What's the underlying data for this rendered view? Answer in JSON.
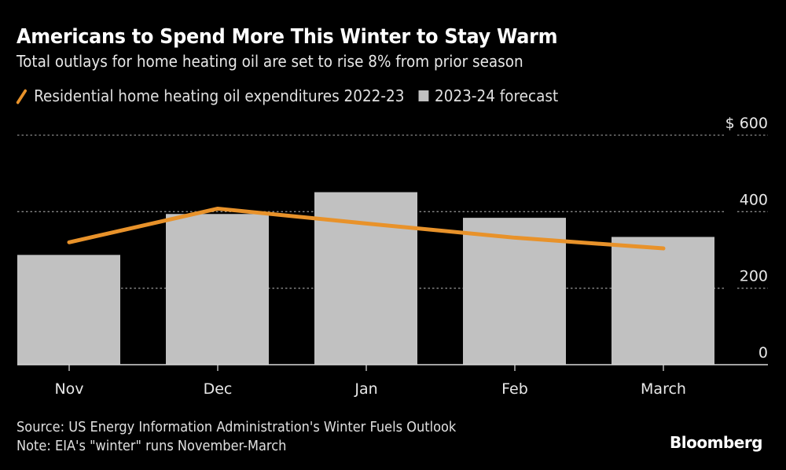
{
  "header": {
    "title": "Americans to Spend More This Winter to Stay Warm",
    "subtitle": "Total outlays for home heating oil are set to rise 8% from prior season"
  },
  "legend": {
    "line_label": "Residential home heating oil expenditures 2022-23",
    "bar_label": "2023-24 forecast"
  },
  "footer": {
    "source": "Source: US Energy Information Administration's Winter Fuels Outlook",
    "note": "Note: EIA's \"winter\" runs November-March",
    "brand": "Bloomberg"
  },
  "colors": {
    "background": "#000000",
    "bar": "#c1c1c1",
    "line": "#e8922a",
    "grid": "#8a8a8a",
    "text": "#ffffff"
  },
  "chart_data": {
    "type": "bar",
    "title": "Americans to Spend More This Winter to Stay Warm",
    "subtitle": "Total outlays for home heating oil are set to rise 8% from prior season",
    "categories": [
      "Nov",
      "Dec",
      "Jan",
      "Feb",
      "March"
    ],
    "series": [
      {
        "name": "2023-24 forecast",
        "type": "bar",
        "values": [
          287,
          394,
          451,
          384,
          334
        ]
      },
      {
        "name": "Residential home heating oil expenditures 2022-23",
        "type": "line",
        "values": [
          320,
          408,
          369,
          332,
          304
        ]
      }
    ],
    "xlabel": "",
    "ylabel": "",
    "ylim": [
      0,
      600
    ],
    "yticks": [
      0,
      200,
      400,
      600
    ],
    "ytick_labels": [
      "0",
      "200",
      "400",
      "$ 600"
    ],
    "y_axis_position": "right",
    "grid": true,
    "legend_position": "top-left"
  }
}
